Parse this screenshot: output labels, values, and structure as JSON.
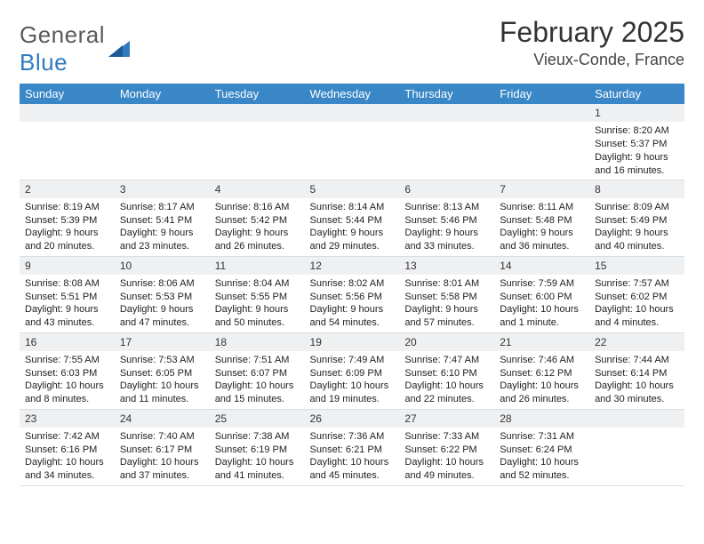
{
  "brand": {
    "word1": "General",
    "word2": "Blue"
  },
  "title": "February 2025",
  "location": "Vieux-Conde, France",
  "colors": {
    "header_bg": "#3a87c7",
    "daynum_bg": "#eef0f2",
    "brand_blue": "#2f7bbf",
    "text": "#222222",
    "border": "#d7dde2"
  },
  "font": {
    "title_size": 32,
    "subtitle_size": 18,
    "header_size": 13,
    "body_size": 11
  },
  "weekdays": [
    "Sunday",
    "Monday",
    "Tuesday",
    "Wednesday",
    "Thursday",
    "Friday",
    "Saturday"
  ],
  "weeks": [
    [
      {
        "blank": true
      },
      {
        "blank": true
      },
      {
        "blank": true
      },
      {
        "blank": true
      },
      {
        "blank": true
      },
      {
        "blank": true
      },
      {
        "n": "1",
        "sunrise": "Sunrise: 8:20 AM",
        "sunset": "Sunset: 5:37 PM",
        "day1": "Daylight: 9 hours",
        "day2": "and 16 minutes."
      }
    ],
    [
      {
        "n": "2",
        "sunrise": "Sunrise: 8:19 AM",
        "sunset": "Sunset: 5:39 PM",
        "day1": "Daylight: 9 hours",
        "day2": "and 20 minutes."
      },
      {
        "n": "3",
        "sunrise": "Sunrise: 8:17 AM",
        "sunset": "Sunset: 5:41 PM",
        "day1": "Daylight: 9 hours",
        "day2": "and 23 minutes."
      },
      {
        "n": "4",
        "sunrise": "Sunrise: 8:16 AM",
        "sunset": "Sunset: 5:42 PM",
        "day1": "Daylight: 9 hours",
        "day2": "and 26 minutes."
      },
      {
        "n": "5",
        "sunrise": "Sunrise: 8:14 AM",
        "sunset": "Sunset: 5:44 PM",
        "day1": "Daylight: 9 hours",
        "day2": "and 29 minutes."
      },
      {
        "n": "6",
        "sunrise": "Sunrise: 8:13 AM",
        "sunset": "Sunset: 5:46 PM",
        "day1": "Daylight: 9 hours",
        "day2": "and 33 minutes."
      },
      {
        "n": "7",
        "sunrise": "Sunrise: 8:11 AM",
        "sunset": "Sunset: 5:48 PM",
        "day1": "Daylight: 9 hours",
        "day2": "and 36 minutes."
      },
      {
        "n": "8",
        "sunrise": "Sunrise: 8:09 AM",
        "sunset": "Sunset: 5:49 PM",
        "day1": "Daylight: 9 hours",
        "day2": "and 40 minutes."
      }
    ],
    [
      {
        "n": "9",
        "sunrise": "Sunrise: 8:08 AM",
        "sunset": "Sunset: 5:51 PM",
        "day1": "Daylight: 9 hours",
        "day2": "and 43 minutes."
      },
      {
        "n": "10",
        "sunrise": "Sunrise: 8:06 AM",
        "sunset": "Sunset: 5:53 PM",
        "day1": "Daylight: 9 hours",
        "day2": "and 47 minutes."
      },
      {
        "n": "11",
        "sunrise": "Sunrise: 8:04 AM",
        "sunset": "Sunset: 5:55 PM",
        "day1": "Daylight: 9 hours",
        "day2": "and 50 minutes."
      },
      {
        "n": "12",
        "sunrise": "Sunrise: 8:02 AM",
        "sunset": "Sunset: 5:56 PM",
        "day1": "Daylight: 9 hours",
        "day2": "and 54 minutes."
      },
      {
        "n": "13",
        "sunrise": "Sunrise: 8:01 AM",
        "sunset": "Sunset: 5:58 PM",
        "day1": "Daylight: 9 hours",
        "day2": "and 57 minutes."
      },
      {
        "n": "14",
        "sunrise": "Sunrise: 7:59 AM",
        "sunset": "Sunset: 6:00 PM",
        "day1": "Daylight: 10 hours",
        "day2": "and 1 minute."
      },
      {
        "n": "15",
        "sunrise": "Sunrise: 7:57 AM",
        "sunset": "Sunset: 6:02 PM",
        "day1": "Daylight: 10 hours",
        "day2": "and 4 minutes."
      }
    ],
    [
      {
        "n": "16",
        "sunrise": "Sunrise: 7:55 AM",
        "sunset": "Sunset: 6:03 PM",
        "day1": "Daylight: 10 hours",
        "day2": "and 8 minutes."
      },
      {
        "n": "17",
        "sunrise": "Sunrise: 7:53 AM",
        "sunset": "Sunset: 6:05 PM",
        "day1": "Daylight: 10 hours",
        "day2": "and 11 minutes."
      },
      {
        "n": "18",
        "sunrise": "Sunrise: 7:51 AM",
        "sunset": "Sunset: 6:07 PM",
        "day1": "Daylight: 10 hours",
        "day2": "and 15 minutes."
      },
      {
        "n": "19",
        "sunrise": "Sunrise: 7:49 AM",
        "sunset": "Sunset: 6:09 PM",
        "day1": "Daylight: 10 hours",
        "day2": "and 19 minutes."
      },
      {
        "n": "20",
        "sunrise": "Sunrise: 7:47 AM",
        "sunset": "Sunset: 6:10 PM",
        "day1": "Daylight: 10 hours",
        "day2": "and 22 minutes."
      },
      {
        "n": "21",
        "sunrise": "Sunrise: 7:46 AM",
        "sunset": "Sunset: 6:12 PM",
        "day1": "Daylight: 10 hours",
        "day2": "and 26 minutes."
      },
      {
        "n": "22",
        "sunrise": "Sunrise: 7:44 AM",
        "sunset": "Sunset: 6:14 PM",
        "day1": "Daylight: 10 hours",
        "day2": "and 30 minutes."
      }
    ],
    [
      {
        "n": "23",
        "sunrise": "Sunrise: 7:42 AM",
        "sunset": "Sunset: 6:16 PM",
        "day1": "Daylight: 10 hours",
        "day2": "and 34 minutes."
      },
      {
        "n": "24",
        "sunrise": "Sunrise: 7:40 AM",
        "sunset": "Sunset: 6:17 PM",
        "day1": "Daylight: 10 hours",
        "day2": "and 37 minutes."
      },
      {
        "n": "25",
        "sunrise": "Sunrise: 7:38 AM",
        "sunset": "Sunset: 6:19 PM",
        "day1": "Daylight: 10 hours",
        "day2": "and 41 minutes."
      },
      {
        "n": "26",
        "sunrise": "Sunrise: 7:36 AM",
        "sunset": "Sunset: 6:21 PM",
        "day1": "Daylight: 10 hours",
        "day2": "and 45 minutes."
      },
      {
        "n": "27",
        "sunrise": "Sunrise: 7:33 AM",
        "sunset": "Sunset: 6:22 PM",
        "day1": "Daylight: 10 hours",
        "day2": "and 49 minutes."
      },
      {
        "n": "28",
        "sunrise": "Sunrise: 7:31 AM",
        "sunset": "Sunset: 6:24 PM",
        "day1": "Daylight: 10 hours",
        "day2": "and 52 minutes."
      },
      {
        "blank": true
      }
    ]
  ]
}
